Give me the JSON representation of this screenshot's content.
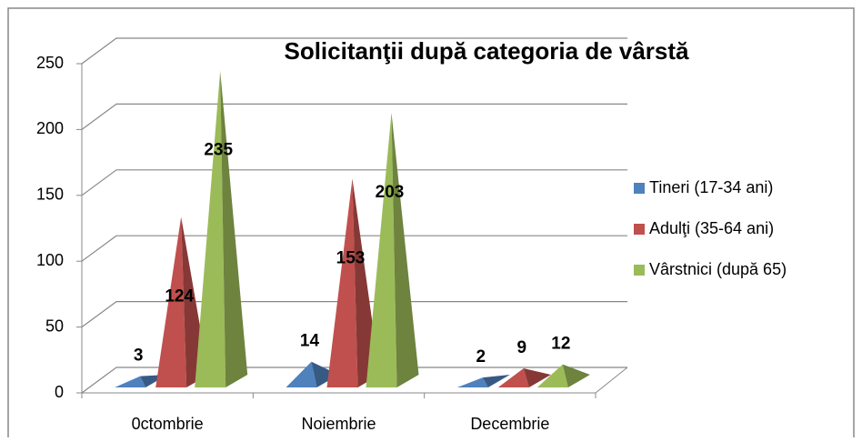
{
  "chart_data": {
    "type": "pyramid3d",
    "title": "Solicitanţii după categoria de vârstă",
    "categories": [
      "0ctombrie",
      "Noiembrie",
      "Decembrie"
    ],
    "series": [
      {
        "name": "Tineri (17-34 ani)",
        "color": "#4f81bd",
        "values": [
          3,
          14,
          2
        ]
      },
      {
        "name": "Adulţi (35-64 ani)",
        "color": "#c0504d",
        "values": [
          124,
          153,
          9
        ]
      },
      {
        "name": "Vârstnici (după 65)",
        "color": "#9bbb59",
        "values": [
          235,
          203,
          12
        ]
      }
    ],
    "ylim": [
      0,
      250
    ],
    "yticks": [
      0,
      50,
      100,
      150,
      200,
      250
    ],
    "grid": true,
    "legend": "right",
    "data_labels": true
  }
}
